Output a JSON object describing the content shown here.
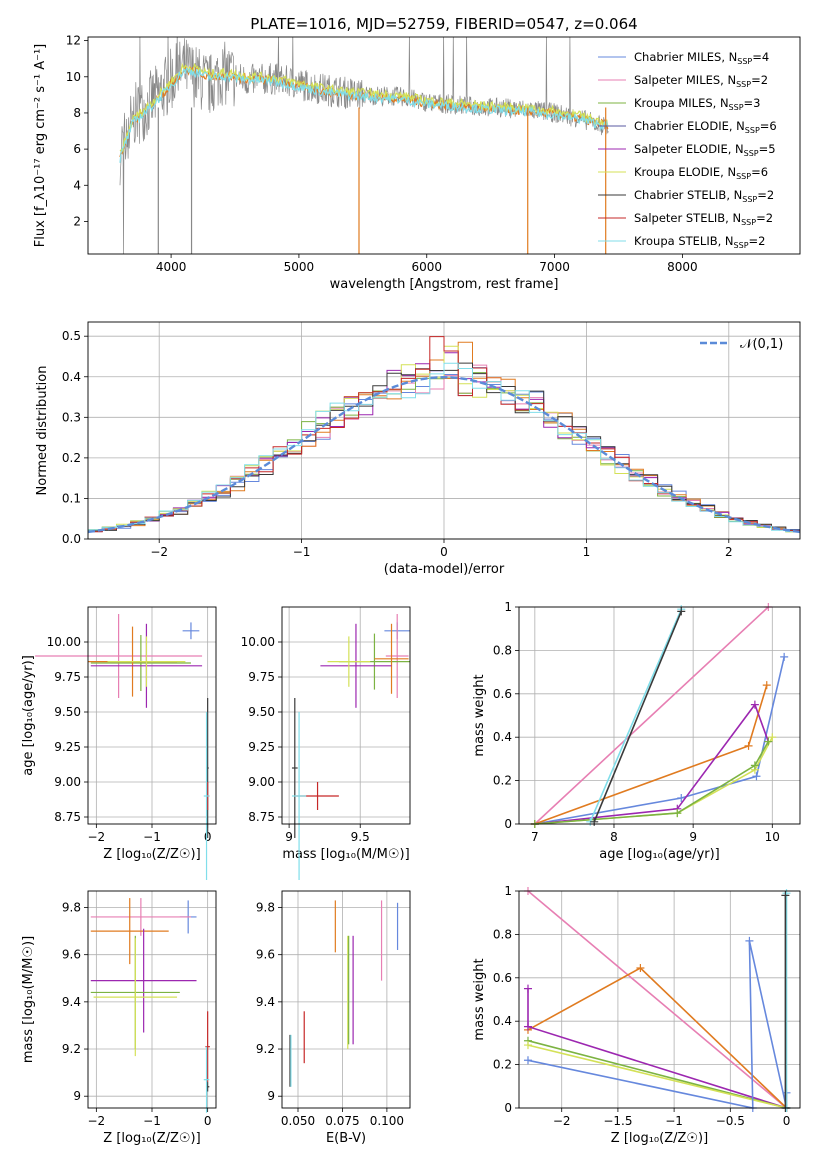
{
  "figure": {
    "title": "PLATE=1016, MJD=52759, FIBERID=0547, z=0.064"
  },
  "colors": {
    "Chabrier MILES": "#6688dd",
    "Salpeter MILES": "#e77fb3",
    "Kroupa MILES": "#7cb342",
    "Chabrier ELODIE": "#5a5aa0",
    "Salpeter ELODIE": "#9c27b0",
    "Kroupa ELODIE": "#d4e157",
    "Chabrier STELIB": "#3a3a3a",
    "Salpeter STELIB": "#c62828",
    "Kroupa STELIB": "#80deea",
    "orange": "#e07b20",
    "gray": "#888888"
  },
  "chart_data": [
    {
      "id": "spectrum",
      "type": "line",
      "xlabel": "wavelength [Angstrom, rest frame]",
      "ylabel": "Flux [f_λ10⁻¹⁷ erg cm⁻² s⁻¹ A⁻¹]",
      "xlim": [
        3350,
        8920
      ],
      "ylim": [
        0.2,
        12.2
      ],
      "xticks": [
        4000,
        5000,
        6000,
        7000,
        8000
      ],
      "yticks": [
        2,
        4,
        6,
        8,
        10,
        12
      ],
      "legend_position": "top-right",
      "legend": [
        {
          "label": "Chabrier MILES, N",
          "sub": "SSP",
          "tail": "=4"
        },
        {
          "label": "Salpeter MILES, N",
          "sub": "SSP",
          "tail": "=2"
        },
        {
          "label": "Kroupa MILES, N",
          "sub": "SSP",
          "tail": "=3"
        },
        {
          "label": "Chabrier ELODIE, N",
          "sub": "SSP",
          "tail": "=6"
        },
        {
          "label": "Salpeter ELODIE, N",
          "sub": "SSP",
          "tail": "=5"
        },
        {
          "label": "Kroupa ELODIE, N",
          "sub": "SSP",
          "tail": "=6"
        },
        {
          "label": "Chabrier STELIB, N",
          "sub": "SSP",
          "tail": "=2"
        },
        {
          "label": "Salpeter STELIB, N",
          "sub": "SSP",
          "tail": "=2"
        },
        {
          "label": "Kroupa STELIB, N",
          "sub": "SSP",
          "tail": "=2"
        }
      ],
      "data_x": [
        3600,
        3700,
        3800,
        3900,
        4000,
        4100,
        4200,
        4300,
        4400,
        4500,
        4600,
        4800,
        5000,
        5200,
        5500,
        5800,
        6000,
        6300,
        6550,
        6800,
        7000,
        7200,
        7420
      ],
      "data_y": [
        5.8,
        7.8,
        8.3,
        9.0,
        9.8,
        10.5,
        10.0,
        9.5,
        10.2,
        10.0,
        9.8,
        9.9,
        9.6,
        9.3,
        9.0,
        8.9,
        8.6,
        8.4,
        8.3,
        8.2,
        8.0,
        7.7,
        7.2
      ],
      "model_y": [
        5.5,
        7.5,
        8.1,
        8.8,
        9.6,
        10.4,
        10.3,
        10.0,
        10.1,
        10.0,
        9.9,
        9.8,
        9.5,
        9.2,
        8.95,
        8.8,
        8.55,
        8.35,
        8.2,
        8.1,
        7.95,
        7.7,
        7.3
      ]
    },
    {
      "id": "residuals",
      "type": "line",
      "xlabel": "(data-model)/error",
      "ylabel": "Normed distribution",
      "xlim": [
        -2.5,
        2.5
      ],
      "ylim": [
        0,
        0.535
      ],
      "xticks": [
        -2,
        -1,
        0,
        1,
        2
      ],
      "yticks": [
        0.0,
        0.1,
        0.2,
        0.3,
        0.4,
        0.5
      ],
      "grid": true,
      "legend_position": "top-right",
      "legend": "𝒩(0,1)",
      "bin_width": 0.1
    },
    {
      "id": "age-vs-Z",
      "type": "scatter",
      "xlabel": "Z [log₁₀(Z/Z☉)]",
      "ylabel": "age  [log₁₀(age/yr)]",
      "xlim": [
        -2.15,
        0.15
      ],
      "ylim": [
        8.7,
        10.25
      ],
      "xticks": [
        -2,
        -1,
        0
      ],
      "yticks": [
        8.75,
        9.0,
        9.25,
        9.5,
        9.75,
        10.0
      ],
      "grid": true,
      "points": [
        {
          "m": "Chabrier MILES",
          "x": -0.3,
          "y": 10.08,
          "ex": 0.15,
          "ey": 0.06
        },
        {
          "m": "Salpeter MILES",
          "x": -1.6,
          "y": 9.9,
          "ex": 1.5,
          "ey": 0.3
        },
        {
          "m": "Kroupa MILES",
          "x": -1.2,
          "y": 9.85,
          "ex": 0.9,
          "ey": 0.2
        },
        {
          "m": "orange",
          "x": -1.35,
          "y": 9.86,
          "ex": 0.8,
          "ey": 0.25
        },
        {
          "m": "Salpeter ELODIE",
          "x": -1.1,
          "y": 9.83,
          "ex": 1.0,
          "ey": 0.3
        },
        {
          "m": "Kroupa ELODIE",
          "x": -1.1,
          "y": 9.86,
          "ex": 0.7,
          "ey": 0.18
        },
        {
          "m": "Chabrier STELIB",
          "x": 0.0,
          "y": 9.1,
          "ex": 0.02,
          "ey": 0.5
        },
        {
          "m": "Salpeter STELIB",
          "x": 0.0,
          "y": 8.9,
          "ex": 0.03,
          "ey": 0.1
        },
        {
          "m": "Kroupa STELIB",
          "x": -0.02,
          "y": 8.9,
          "ex": 0.05,
          "ey": 0.6
        }
      ]
    },
    {
      "id": "age-vs-mass",
      "type": "scatter",
      "xlabel": "mass [log₁₀(M/M☉)]",
      "xlim": [
        8.95,
        9.85
      ],
      "ylim": [
        8.7,
        10.25
      ],
      "xticks": [
        9.0,
        9.5
      ],
      "yticks": [
        8.75,
        9.0,
        9.25,
        9.5,
        9.75,
        10.0
      ],
      "grid": true,
      "points": [
        {
          "m": "Chabrier MILES",
          "x": 9.76,
          "y": 10.08,
          "ex": 0.09,
          "ey": 0.06
        },
        {
          "m": "Salpeter MILES",
          "x": 9.76,
          "y": 9.9,
          "ex": 0.08,
          "ey": 0.3
        },
        {
          "m": "Kroupa MILES",
          "x": 9.6,
          "y": 9.86,
          "ex": 0.25,
          "ey": 0.2
        },
        {
          "m": "orange",
          "x": 9.72,
          "y": 9.88,
          "ex": 0.12,
          "ey": 0.25
        },
        {
          "m": "Salpeter ELODIE",
          "x": 9.47,
          "y": 9.83,
          "ex": 0.25,
          "ey": 0.3
        },
        {
          "m": "Kroupa ELODIE",
          "x": 9.42,
          "y": 9.86,
          "ex": 0.15,
          "ey": 0.18
        },
        {
          "m": "Chabrier STELIB",
          "x": 9.04,
          "y": 9.1,
          "ex": 0.02,
          "ey": 0.5
        },
        {
          "m": "Salpeter STELIB",
          "x": 9.2,
          "y": 8.9,
          "ex": 0.15,
          "ey": 0.1
        },
        {
          "m": "Kroupa STELIB",
          "x": 9.07,
          "y": 8.9,
          "ex": 0.05,
          "ey": 0.6
        }
      ]
    },
    {
      "id": "weight-vs-age",
      "type": "line",
      "xlabel": "age  [log₁₀(age/yr)]",
      "ylabel": "mass weight",
      "xlim": [
        6.8,
        10.35
      ],
      "ylim": [
        0,
        1.0
      ],
      "xticks": [
        7,
        8,
        9,
        10
      ],
      "yticks": [
        0.0,
        0.2,
        0.4,
        0.6,
        0.8,
        1.0
      ],
      "grid": true,
      "series": [
        {
          "m": "Chabrier MILES",
          "x": [
            7.0,
            8.85,
            9.8,
            10.15
          ],
          "y": [
            0.0,
            0.12,
            0.22,
            0.77
          ]
        },
        {
          "m": "Salpeter MILES",
          "x": [
            7.0,
            9.95
          ],
          "y": [
            0.0,
            1.0
          ]
        },
        {
          "m": "orange",
          "x": [
            7.0,
            9.7,
            9.93
          ],
          "y": [
            0.0,
            0.36,
            0.64
          ]
        },
        {
          "m": "Salpeter ELODIE",
          "x": [
            7.0,
            8.8,
            9.78,
            9.95
          ],
          "y": [
            0.0,
            0.07,
            0.55,
            0.38
          ]
        },
        {
          "m": "Kroupa ELODIE",
          "x": [
            7.0,
            8.8,
            9.78,
            10.0
          ],
          "y": [
            0.0,
            0.05,
            0.25,
            0.4
          ]
        },
        {
          "m": "Kroupa MILES",
          "x": [
            7.0,
            8.8,
            9.78,
            9.95
          ],
          "y": [
            0.0,
            0.05,
            0.27,
            0.38
          ]
        },
        {
          "m": "Kroupa STELIB",
          "x": [
            7.7,
            8.85
          ],
          "y": [
            0.01,
            0.99
          ]
        },
        {
          "m": "Chabrier STELIB",
          "x": [
            7.75,
            8.85
          ],
          "y": [
            0.01,
            0.98
          ]
        }
      ]
    },
    {
      "id": "mass-vs-Z",
      "type": "scatter",
      "xlabel": "Z [log₁₀(Z/Z☉)]",
      "ylabel": "mass [log₁₀(M/M☉)]",
      "xlim": [
        -2.15,
        0.15
      ],
      "ylim": [
        8.95,
        9.87
      ],
      "xticks": [
        -2,
        -1,
        0
      ],
      "yticks": [
        9.0,
        9.2,
        9.4,
        9.6,
        9.8
      ],
      "grid": true,
      "points": [
        {
          "m": "Chabrier MILES",
          "x": -0.35,
          "y": 9.76,
          "ex": 0.15,
          "ey": 0.07
        },
        {
          "m": "Salpeter MILES",
          "x": -1.2,
          "y": 9.76,
          "ex": 0.9,
          "ey": 0.08
        },
        {
          "m": "orange",
          "x": -1.4,
          "y": 9.7,
          "ex": 0.7,
          "ey": 0.14
        },
        {
          "m": "Salpeter ELODIE",
          "x": -1.15,
          "y": 9.49,
          "ex": 0.95,
          "ey": 0.22
        },
        {
          "m": "Kroupa MILES",
          "x": -1.3,
          "y": 9.44,
          "ex": 0.8,
          "ey": 0.24
        },
        {
          "m": "Kroupa ELODIE",
          "x": -1.3,
          "y": 9.42,
          "ex": 0.75,
          "ey": 0.25
        },
        {
          "m": "Salpeter STELIB",
          "x": 0.0,
          "y": 9.21,
          "ex": 0.04,
          "ey": 0.15
        },
        {
          "m": "Chabrier STELIB",
          "x": 0.0,
          "y": 9.04,
          "ex": 0.03,
          "ey": 0.02
        },
        {
          "m": "Kroupa STELIB",
          "x": -0.02,
          "y": 9.07,
          "ex": 0.05,
          "ey": 0.14
        }
      ]
    },
    {
      "id": "mass-vs-ebv",
      "type": "scatter",
      "xlabel": "E(B-V)",
      "xlim": [
        0.041,
        0.113
      ],
      "ylim": [
        8.95,
        9.87
      ],
      "xticks": [
        0.05,
        0.075,
        0.1
      ],
      "xticklabels": [
        "0.050",
        "0.075",
        "0.100"
      ],
      "yticks": [
        9.0,
        9.2,
        9.4,
        9.6,
        9.8
      ],
      "grid": true,
      "points": [
        {
          "m": "Chabrier MILES",
          "x": 0.106,
          "y": 9.72,
          "ey": 0.1
        },
        {
          "m": "Salpeter MILES",
          "x": 0.097,
          "y": 9.66,
          "ey": 0.17
        },
        {
          "m": "orange",
          "x": 0.071,
          "y": 9.72,
          "ey": 0.11
        },
        {
          "m": "Kroupa ELODIE",
          "x": 0.078,
          "y": 9.44,
          "ey": 0.24
        },
        {
          "m": "Kroupa MILES",
          "x": 0.0785,
          "y": 9.45,
          "ey": 0.23
        },
        {
          "m": "Salpeter ELODIE",
          "x": 0.081,
          "y": 9.45,
          "ey": 0.23
        },
        {
          "m": "Salpeter STELIB",
          "x": 0.0535,
          "y": 9.25,
          "ey": 0.11
        },
        {
          "m": "Chabrier STELIB",
          "x": 0.0455,
          "y": 9.15,
          "ey": 0.11
        },
        {
          "m": "Kroupa STELIB",
          "x": 0.046,
          "y": 9.15,
          "ey": 0.11
        }
      ]
    },
    {
      "id": "weight-vs-Z",
      "type": "line",
      "xlabel": "Z [log₁₀(Z/Z☉)]",
      "ylabel": "mass weight",
      "xlim": [
        -2.38,
        0.12
      ],
      "ylim": [
        0,
        1.0
      ],
      "xticks": [
        -2.0,
        -1.5,
        -1.0,
        -0.5,
        0.0
      ],
      "yticks": [
        0.0,
        0.2,
        0.4,
        0.6,
        0.8,
        1.0
      ],
      "grid": true,
      "series": [
        {
          "m": "Salpeter MILES",
          "x": [
            -2.3,
            0.0
          ],
          "y": [
            1.0,
            0.0
          ]
        },
        {
          "m": "orange",
          "x": [
            -2.3,
            -1.3,
            0.0
          ],
          "y": [
            0.36,
            0.645,
            0.0
          ]
        },
        {
          "m": "Salpeter ELODIE",
          "x": [
            -2.3,
            -2.3,
            0.0
          ],
          "y": [
            0.55,
            0.375,
            0.0
          ]
        },
        {
          "m": "Kroupa MILES",
          "x": [
            -2.3,
            0.0
          ],
          "y": [
            0.31,
            0.0
          ]
        },
        {
          "m": "Kroupa ELODIE",
          "x": [
            -2.3,
            0.0
          ],
          "y": [
            0.29,
            0.0
          ]
        },
        {
          "m": "Chabrier MILES",
          "x": [
            -2.3,
            -0.3,
            -0.33,
            0.0,
            0.0
          ],
          "y": [
            0.22,
            0.0,
            0.77,
            0.0,
            0.07
          ]
        },
        {
          "m": "Kroupa STELIB",
          "x": [
            0.0,
            0.0
          ],
          "y": [
            0.0,
            0.99
          ]
        },
        {
          "m": "Chabrier STELIB",
          "x": [
            -0.01,
            -0.01
          ],
          "y": [
            0.0,
            0.98
          ]
        }
      ]
    }
  ]
}
